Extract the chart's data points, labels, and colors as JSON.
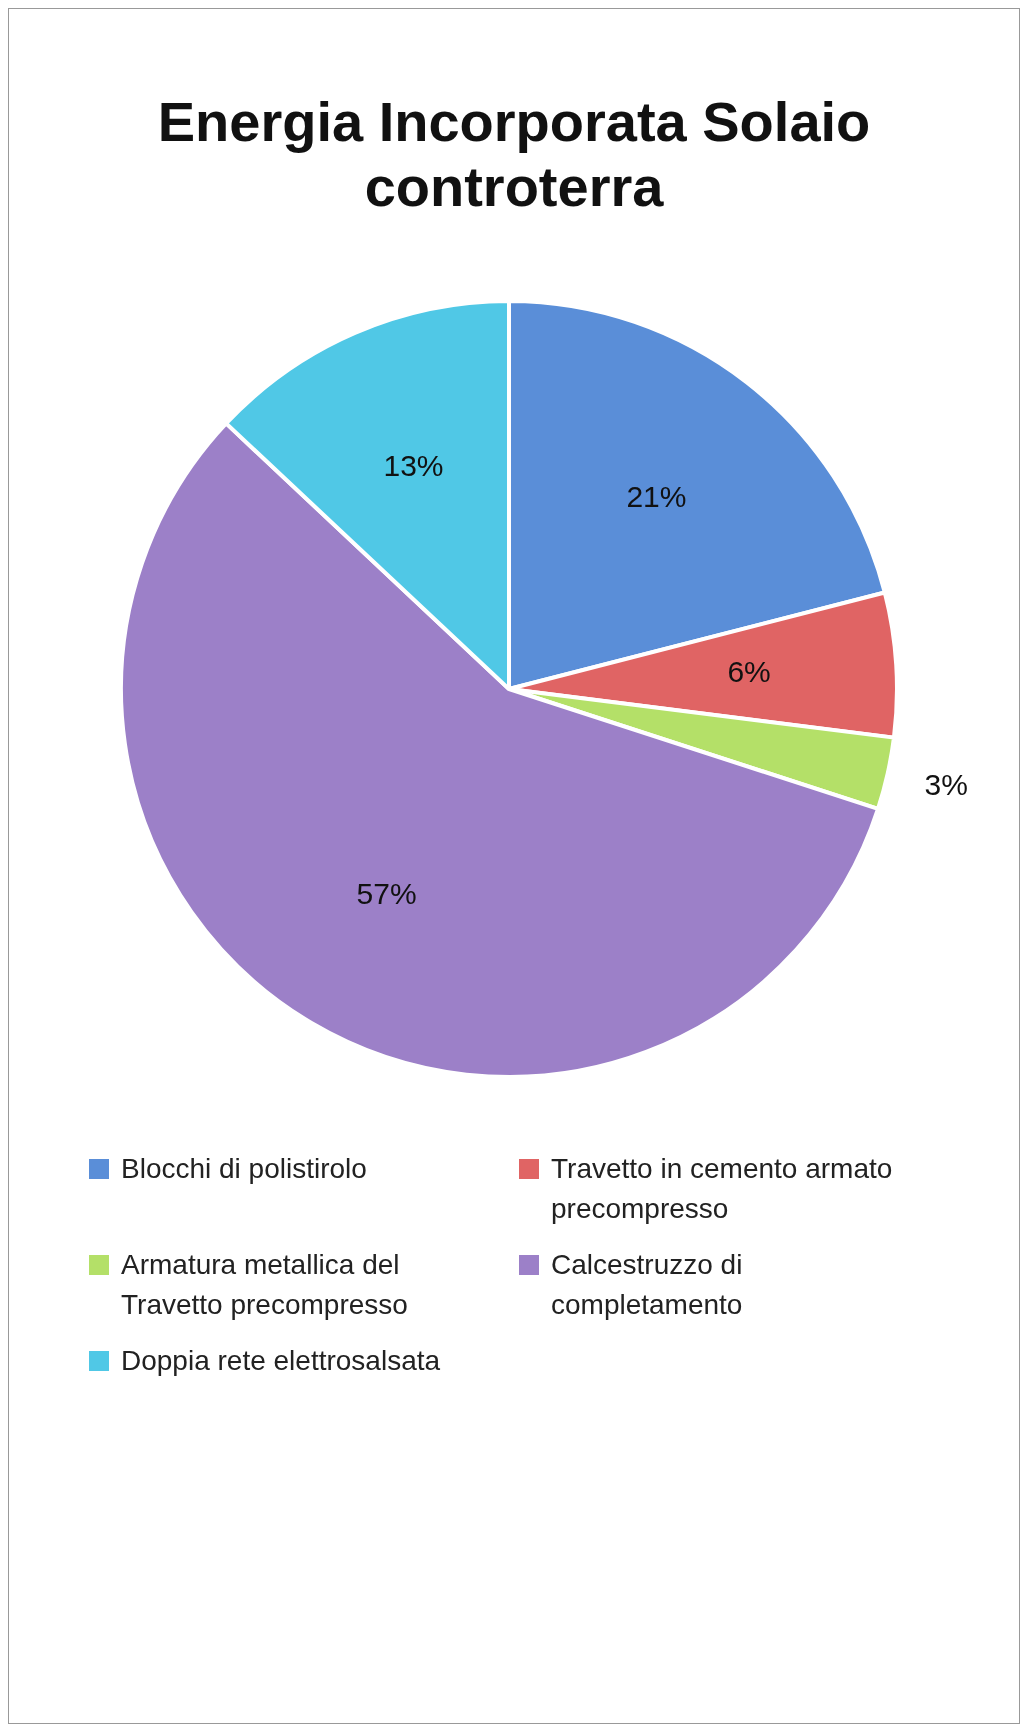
{
  "chart_data": {
    "type": "pie",
    "title": "Energia Incorporata Solaio controterra",
    "categories": [
      "Blocchi di polistirolo",
      "Travetto in cemento armato precompresso",
      "Armatura metallica del Travetto  precompresso",
      "Calcestruzzo di completamento",
      "Doppia rete elettrosalsata"
    ],
    "values": [
      21,
      6,
      3,
      57,
      13
    ],
    "value_labels": [
      "21%",
      "6%",
      "3%",
      "57%",
      "13%"
    ],
    "colors": [
      "#5a8ed8",
      "#e06464",
      "#b4e068",
      "#9c80c8",
      "#50c8e6"
    ],
    "legend": "bottom"
  }
}
